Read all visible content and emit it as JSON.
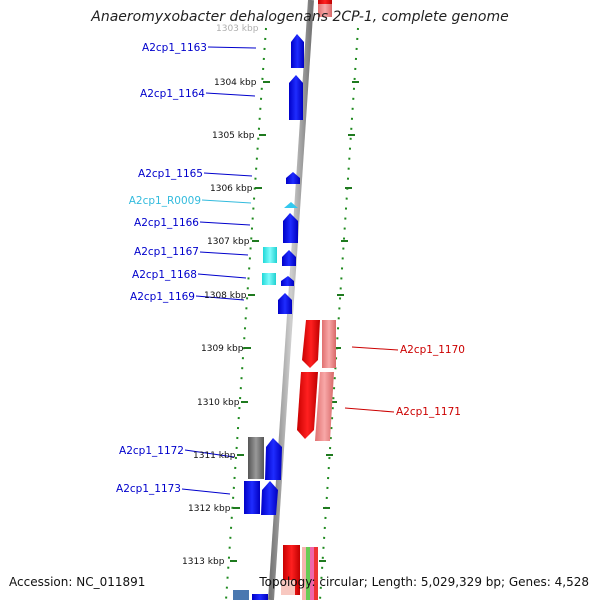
{
  "title": "Anaeromyxobacter dehalogenans 2CP-1, complete genome",
  "accession": "Accession: NC_011891",
  "summary": "Topology: circular; Length: 5,029,329 bp; Genes: 4,528",
  "top_tick": "1303 kbp",
  "ticks": [
    "1304 kbp",
    "1305 kbp",
    "1306 kbp",
    "1307 kbp",
    "1308 kbp",
    "1309 kbp",
    "1310 kbp",
    "1311 kbp",
    "1312 kbp",
    "1313 kbp"
  ],
  "genes_left": [
    "A2cp1_1163",
    "A2cp1_1164",
    "A2cp1_1165",
    "A2cp1_R0009",
    "A2cp1_1166",
    "A2cp1_1167",
    "A2cp1_1168",
    "A2cp1_1169",
    "A2cp1_1172",
    "A2cp1_1173"
  ],
  "genes_right": [
    "A2cp1_1170",
    "A2cp1_1171"
  ],
  "colors": {
    "protein": "#0000ee",
    "rna": "#33ccee",
    "reverse": "#ee0000",
    "reverse_light": "#f09090",
    "cyan_box": "#33eeee",
    "gray_box": "#707070",
    "backbone": "#888888",
    "dots": "#228b22"
  }
}
